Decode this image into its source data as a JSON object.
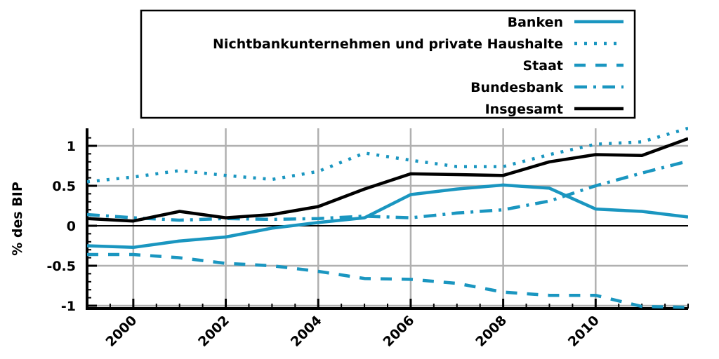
{
  "chart_data": {
    "type": "line",
    "title": "",
    "xlabel": "",
    "ylabel": "% des BIP",
    "xlim": [
      1999,
      2012
    ],
    "ylim": [
      -1,
      1.2
    ],
    "x_ticks": [
      "2000",
      "2002",
      "2004",
      "2006",
      "2008",
      "2010"
    ],
    "y_ticks": [
      "1",
      "0.5",
      "0",
      "-0.5",
      "-1"
    ],
    "grid": true,
    "legend_position": "top-center",
    "x": [
      1999,
      2000,
      2001,
      2002,
      2003,
      2004,
      2005,
      2006,
      2007,
      2008,
      2009,
      2010,
      2011,
      2012
    ],
    "series": [
      {
        "name": "Banken",
        "style": "solid",
        "color": "#1a96c0",
        "values": [
          -0.25,
          -0.27,
          -0.19,
          -0.14,
          -0.03,
          0.04,
          0.1,
          0.39,
          0.46,
          0.51,
          0.47,
          0.21,
          0.18,
          0.11
        ]
      },
      {
        "name": "Nichtbankunternehmen und private Haushalte",
        "style": "dotted",
        "color": "#1a96c0",
        "values": [
          0.55,
          0.61,
          0.69,
          0.63,
          0.58,
          0.68,
          0.91,
          0.82,
          0.74,
          0.74,
          0.89,
          1.02,
          1.05,
          1.22
        ]
      },
      {
        "name": "Staat",
        "style": "dashed",
        "color": "#1a96c0",
        "values": [
          -0.36,
          -0.36,
          -0.4,
          -0.47,
          -0.5,
          -0.57,
          -0.66,
          -0.67,
          -0.72,
          -0.83,
          -0.87,
          -0.87,
          -1.01,
          -1.02
        ]
      },
      {
        "name": "Bundesbank",
        "style": "dashdot",
        "color": "#1a96c0",
        "values": [
          0.14,
          0.1,
          0.07,
          0.09,
          0.08,
          0.09,
          0.12,
          0.1,
          0.16,
          0.2,
          0.31,
          0.5,
          0.66,
          0.81
        ]
      },
      {
        "name": "Insgesamt",
        "style": "solid",
        "color": "#000000",
        "values": [
          0.09,
          0.06,
          0.18,
          0.1,
          0.14,
          0.24,
          0.46,
          0.65,
          0.64,
          0.63,
          0.8,
          0.89,
          0.88,
          1.09
        ]
      }
    ]
  }
}
